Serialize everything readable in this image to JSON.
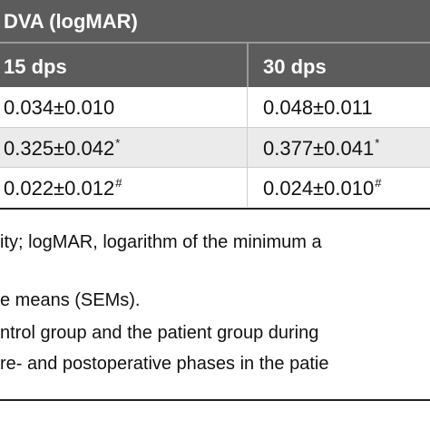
{
  "table": {
    "title": "DVA (logMAR)",
    "columns": [
      "15 dps",
      "30 dps"
    ],
    "rows": [
      [
        {
          "value": "0.034±0.010"
        },
        {
          "value": "0.048±0.011"
        }
      ],
      [
        {
          "value": "0.325±0.042",
          "sup": "*"
        },
        {
          "value": "0.377±0.041",
          "sup": "*"
        }
      ],
      [
        {
          "value": "0.022±0.012",
          "sup": "#"
        },
        {
          "value": "0.024±0.010",
          "sup": "#"
        }
      ]
    ]
  },
  "footnotes": [
    "ity; logMAR, logarithm of the minimum a",
    "e means (SEMs).",
    "ntrol group and the patient group during",
    "re- and postoperative phases in the patie"
  ]
}
